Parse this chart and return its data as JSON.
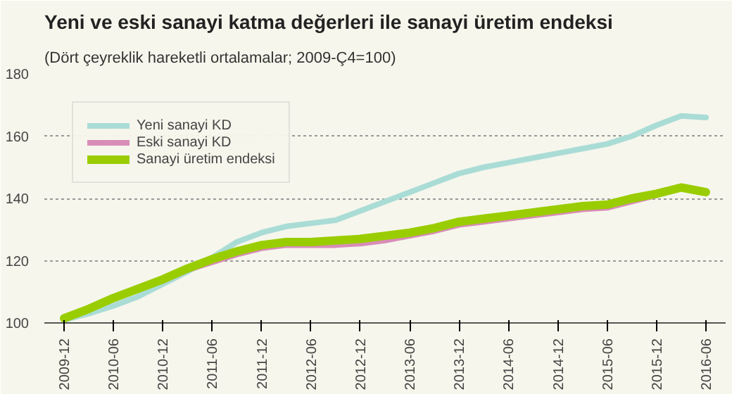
{
  "chart_data": {
    "type": "line",
    "title": "Yeni ve eski sanayi katma değerleri ile sanayi üretim endeksi",
    "subtitle": "(Dört çeyreklik  hareketli ortalamalar; 2009-Ç4=100)",
    "categories": [
      "2009-12",
      null,
      "2010-06",
      null,
      "2010-12",
      null,
      "2011-06",
      null,
      "2011-12",
      null,
      "2012-06",
      null,
      "2012-12",
      null,
      "2013-06",
      null,
      "2013-12",
      null,
      "2014-06",
      null,
      "2014-12",
      null,
      "2015-06",
      null,
      "2015-12",
      null,
      "2016-06"
    ],
    "series": [
      {
        "name": "Yeni sanayi KD",
        "color": "#aadcd6",
        "values": [
          101,
          103,
          105.5,
          108.5,
          112.5,
          116.5,
          121,
          126,
          129,
          131,
          132,
          133,
          136,
          139,
          142,
          145,
          148,
          150,
          151.5,
          153,
          154.5,
          156,
          157.5,
          160,
          163.5,
          166.5,
          166
        ]
      },
      {
        "name": "Eski sanayi KD",
        "color": "#d98cb8",
        "values": [
          null,
          null,
          null,
          null,
          113.5,
          117,
          119.5,
          122,
          124,
          125,
          125,
          125,
          125.5,
          126.5,
          128,
          129.5,
          131.5,
          132.5,
          133.5,
          134.5,
          135.5,
          136.5,
          137,
          139,
          141,
          null,
          null
        ]
      },
      {
        "name": "Sanayi üretim endeksi",
        "color": "#9acd00",
        "values": [
          101.5,
          104.5,
          108,
          111,
          114,
          117.5,
          120.5,
          123,
          125,
          126,
          126,
          126.5,
          127,
          128,
          129,
          130.5,
          132.5,
          133.5,
          134.5,
          135.5,
          136.5,
          137.5,
          138,
          140,
          141.5,
          143.5,
          142
        ]
      }
    ],
    "ylim": [
      100,
      180
    ],
    "yticks": [
      100,
      120,
      140,
      160,
      180
    ],
    "grid": "y",
    "legend": "top left"
  }
}
